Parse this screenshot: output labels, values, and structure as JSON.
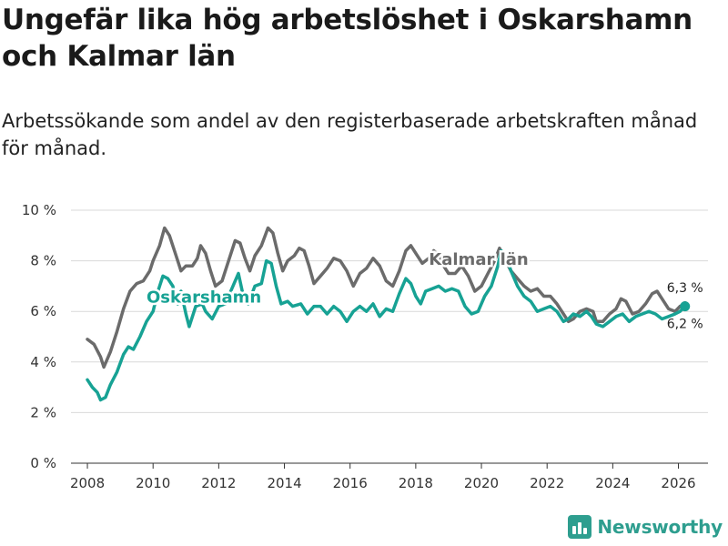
{
  "title": "Ungefär lika hög arbetslöshet i Oskarshamn och Kalmar län",
  "subtitle": "Arbetssökande som andel av den registerbaserade arbetskraften månad för månad.",
  "brand": "Newsworthy",
  "colors": {
    "kalmar": "#6b6b6b",
    "oskarshamn": "#17a294",
    "grid": "#d9d9d9",
    "brand": "#2e9e8f"
  },
  "chart_data": {
    "type": "line",
    "title": "Ungefär lika hög arbetslöshet i Oskarshamn och Kalmar län",
    "xlabel": "",
    "ylabel": "",
    "xlim": [
      2007.5,
      2026.9
    ],
    "ylim": [
      0,
      10
    ],
    "x_ticks": [
      2008,
      2010,
      2012,
      2014,
      2016,
      2018,
      2020,
      2022,
      2024,
      2026
    ],
    "x_tick_labels": [
      "2008",
      "2010",
      "2012",
      "2014",
      "2016",
      "2018",
      "2020",
      "2022",
      "2024",
      "2026"
    ],
    "y_ticks": [
      0,
      2,
      4,
      6,
      8,
      10
    ],
    "y_tick_labels": [
      "0 %",
      "2 %",
      "4 %",
      "6 %",
      "8 %",
      "10 %"
    ],
    "grid": true,
    "series": [
      {
        "name": "Kalmar län",
        "label": "Kalmar län",
        "end_label": "6,3 %",
        "points": [
          [
            2008.0,
            4.9
          ],
          [
            2008.2,
            4.7
          ],
          [
            2008.4,
            4.2
          ],
          [
            2008.5,
            3.8
          ],
          [
            2008.7,
            4.4
          ],
          [
            2008.9,
            5.2
          ],
          [
            2009.1,
            6.1
          ],
          [
            2009.3,
            6.8
          ],
          [
            2009.5,
            7.1
          ],
          [
            2009.7,
            7.2
          ],
          [
            2009.9,
            7.6
          ],
          [
            2010.0,
            8.0
          ],
          [
            2010.2,
            8.6
          ],
          [
            2010.35,
            9.3
          ],
          [
            2010.5,
            9.0
          ],
          [
            2010.7,
            8.2
          ],
          [
            2010.85,
            7.6
          ],
          [
            2011.0,
            7.8
          ],
          [
            2011.2,
            7.8
          ],
          [
            2011.35,
            8.1
          ],
          [
            2011.45,
            8.6
          ],
          [
            2011.6,
            8.3
          ],
          [
            2011.75,
            7.6
          ],
          [
            2011.9,
            7.0
          ],
          [
            2012.1,
            7.2
          ],
          [
            2012.3,
            8.0
          ],
          [
            2012.5,
            8.8
          ],
          [
            2012.65,
            8.7
          ],
          [
            2012.8,
            8.1
          ],
          [
            2012.95,
            7.6
          ],
          [
            2013.1,
            8.2
          ],
          [
            2013.3,
            8.6
          ],
          [
            2013.5,
            9.3
          ],
          [
            2013.65,
            9.1
          ],
          [
            2013.8,
            8.3
          ],
          [
            2013.95,
            7.6
          ],
          [
            2014.1,
            8.0
          ],
          [
            2014.3,
            8.2
          ],
          [
            2014.45,
            8.5
          ],
          [
            2014.6,
            8.4
          ],
          [
            2014.75,
            7.8
          ],
          [
            2014.9,
            7.1
          ],
          [
            2015.1,
            7.4
          ],
          [
            2015.3,
            7.7
          ],
          [
            2015.5,
            8.1
          ],
          [
            2015.7,
            8.0
          ],
          [
            2015.9,
            7.6
          ],
          [
            2016.1,
            7.0
          ],
          [
            2016.3,
            7.5
          ],
          [
            2016.5,
            7.7
          ],
          [
            2016.7,
            8.1
          ],
          [
            2016.9,
            7.8
          ],
          [
            2017.1,
            7.2
          ],
          [
            2017.3,
            7.0
          ],
          [
            2017.5,
            7.6
          ],
          [
            2017.7,
            8.4
          ],
          [
            2017.85,
            8.6
          ],
          [
            2018.0,
            8.3
          ],
          [
            2018.2,
            7.9
          ],
          [
            2018.4,
            8.1
          ],
          [
            2018.55,
            8.4
          ],
          [
            2018.7,
            8.2
          ],
          [
            2018.85,
            7.8
          ],
          [
            2019.0,
            7.5
          ],
          [
            2019.2,
            7.5
          ],
          [
            2019.4,
            7.8
          ],
          [
            2019.6,
            7.4
          ],
          [
            2019.8,
            6.8
          ],
          [
            2020.0,
            7.0
          ],
          [
            2020.2,
            7.5
          ],
          [
            2020.4,
            8.0
          ],
          [
            2020.55,
            8.5
          ],
          [
            2020.7,
            8.1
          ],
          [
            2020.9,
            7.6
          ],
          [
            2021.1,
            7.3
          ],
          [
            2021.3,
            7.0
          ],
          [
            2021.5,
            6.8
          ],
          [
            2021.7,
            6.9
          ],
          [
            2021.9,
            6.6
          ],
          [
            2022.1,
            6.6
          ],
          [
            2022.3,
            6.3
          ],
          [
            2022.5,
            5.9
          ],
          [
            2022.65,
            5.6
          ],
          [
            2022.8,
            5.7
          ],
          [
            2023.0,
            6.0
          ],
          [
            2023.2,
            6.1
          ],
          [
            2023.4,
            6.0
          ],
          [
            2023.5,
            5.6
          ],
          [
            2023.7,
            5.6
          ],
          [
            2023.9,
            5.9
          ],
          [
            2024.1,
            6.1
          ],
          [
            2024.25,
            6.5
          ],
          [
            2024.4,
            6.4
          ],
          [
            2024.6,
            5.9
          ],
          [
            2024.8,
            6.0
          ],
          [
            2025.0,
            6.3
          ],
          [
            2025.2,
            6.7
          ],
          [
            2025.35,
            6.8
          ],
          [
            2025.5,
            6.5
          ],
          [
            2025.7,
            6.1
          ],
          [
            2025.9,
            6.0
          ],
          [
            2026.05,
            6.2
          ],
          [
            2026.2,
            6.3
          ]
        ]
      },
      {
        "name": "Oskarshamn",
        "label": "Oskarshamn",
        "end_label": "6,2 %",
        "points": [
          [
            2008.0,
            3.3
          ],
          [
            2008.15,
            3.0
          ],
          [
            2008.3,
            2.8
          ],
          [
            2008.4,
            2.5
          ],
          [
            2008.55,
            2.6
          ],
          [
            2008.7,
            3.1
          ],
          [
            2008.9,
            3.6
          ],
          [
            2009.1,
            4.3
          ],
          [
            2009.25,
            4.6
          ],
          [
            2009.4,
            4.5
          ],
          [
            2009.6,
            5.0
          ],
          [
            2009.8,
            5.6
          ],
          [
            2010.0,
            6.0
          ],
          [
            2010.15,
            6.8
          ],
          [
            2010.3,
            7.4
          ],
          [
            2010.45,
            7.3
          ],
          [
            2010.6,
            7.0
          ],
          [
            2010.75,
            6.3
          ],
          [
            2010.85,
            6.8
          ],
          [
            2011.0,
            5.9
          ],
          [
            2011.1,
            5.4
          ],
          [
            2011.3,
            6.2
          ],
          [
            2011.5,
            6.3
          ],
          [
            2011.6,
            6.0
          ],
          [
            2011.8,
            5.7
          ],
          [
            2012.0,
            6.2
          ],
          [
            2012.2,
            6.3
          ],
          [
            2012.4,
            6.9
          ],
          [
            2012.6,
            7.5
          ],
          [
            2012.75,
            6.6
          ],
          [
            2012.9,
            6.3
          ],
          [
            2013.1,
            7.0
          ],
          [
            2013.3,
            7.1
          ],
          [
            2013.45,
            8.0
          ],
          [
            2013.6,
            7.9
          ],
          [
            2013.75,
            7.0
          ],
          [
            2013.9,
            6.3
          ],
          [
            2014.1,
            6.4
          ],
          [
            2014.25,
            6.2
          ],
          [
            2014.5,
            6.3
          ],
          [
            2014.7,
            5.9
          ],
          [
            2014.9,
            6.2
          ],
          [
            2015.1,
            6.2
          ],
          [
            2015.3,
            5.9
          ],
          [
            2015.5,
            6.2
          ],
          [
            2015.7,
            6.0
          ],
          [
            2015.9,
            5.6
          ],
          [
            2016.1,
            6.0
          ],
          [
            2016.3,
            6.2
          ],
          [
            2016.5,
            6.0
          ],
          [
            2016.7,
            6.3
          ],
          [
            2016.9,
            5.8
          ],
          [
            2017.1,
            6.1
          ],
          [
            2017.3,
            6.0
          ],
          [
            2017.5,
            6.7
          ],
          [
            2017.7,
            7.3
          ],
          [
            2017.85,
            7.1
          ],
          [
            2018.0,
            6.6
          ],
          [
            2018.15,
            6.3
          ],
          [
            2018.3,
            6.8
          ],
          [
            2018.5,
            6.9
          ],
          [
            2018.7,
            7.0
          ],
          [
            2018.9,
            6.8
          ],
          [
            2019.1,
            6.9
          ],
          [
            2019.3,
            6.8
          ],
          [
            2019.5,
            6.2
          ],
          [
            2019.7,
            5.9
          ],
          [
            2019.9,
            6.0
          ],
          [
            2020.1,
            6.6
          ],
          [
            2020.3,
            7.0
          ],
          [
            2020.5,
            7.8
          ],
          [
            2020.6,
            8.4
          ],
          [
            2020.75,
            8.2
          ],
          [
            2020.9,
            7.6
          ],
          [
            2021.1,
            7.0
          ],
          [
            2021.3,
            6.6
          ],
          [
            2021.5,
            6.4
          ],
          [
            2021.7,
            6.0
          ],
          [
            2021.9,
            6.1
          ],
          [
            2022.1,
            6.2
          ],
          [
            2022.3,
            6.0
          ],
          [
            2022.5,
            5.6
          ],
          [
            2022.65,
            5.7
          ],
          [
            2022.8,
            5.9
          ],
          [
            2023.0,
            5.8
          ],
          [
            2023.2,
            6.0
          ],
          [
            2023.35,
            5.8
          ],
          [
            2023.5,
            5.5
          ],
          [
            2023.7,
            5.4
          ],
          [
            2023.9,
            5.6
          ],
          [
            2024.1,
            5.8
          ],
          [
            2024.3,
            5.9
          ],
          [
            2024.5,
            5.6
          ],
          [
            2024.7,
            5.8
          ],
          [
            2024.9,
            5.9
          ],
          [
            2025.1,
            6.0
          ],
          [
            2025.3,
            5.9
          ],
          [
            2025.5,
            5.7
          ],
          [
            2025.7,
            5.8
          ],
          [
            2025.9,
            5.9
          ],
          [
            2026.05,
            6.0
          ],
          [
            2026.2,
            6.2
          ]
        ]
      }
    ]
  }
}
